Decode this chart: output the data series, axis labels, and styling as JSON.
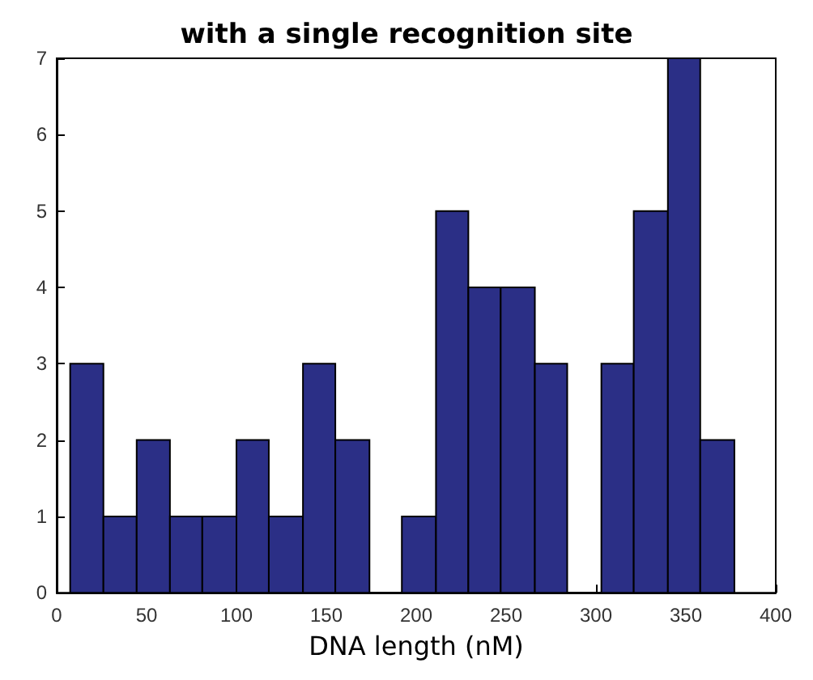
{
  "chart_data": {
    "type": "histogram",
    "title": "with a single recognition site",
    "xlabel": "DNA length (nM)",
    "bins": [
      7.5,
      26,
      44.5,
      63,
      81,
      100,
      118,
      137,
      155,
      174,
      192,
      211,
      229,
      247,
      266,
      284,
      303,
      321,
      340,
      358,
      377
    ],
    "values": [
      3,
      1,
      2,
      1,
      1,
      2,
      1,
      3,
      2,
      0,
      1,
      5,
      4,
      4,
      3,
      0,
      3,
      5,
      7,
      2
    ],
    "color": "#2b2f86",
    "xlim": [
      0,
      400
    ],
    "xticks": [
      0,
      50,
      100,
      150,
      200,
      250,
      300,
      350,
      400
    ],
    "ylim": [
      0,
      7
    ],
    "yticks": [
      0,
      1,
      2,
      3,
      4,
      5,
      6,
      7
    ],
    "grid": false
  }
}
